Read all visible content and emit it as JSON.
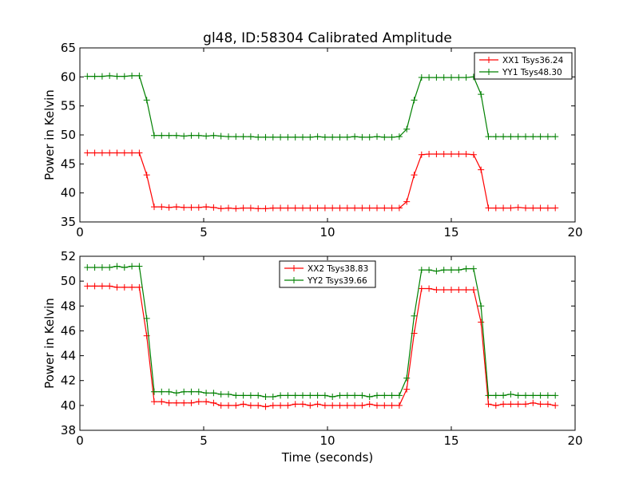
{
  "figure": {
    "title": "gl48, ID:58304 Calibrated Amplitude"
  },
  "chart_data": [
    {
      "type": "line",
      "title": "gl48, ID:58304 Calibrated Amplitude",
      "xlabel": "",
      "ylabel": "Power in Kelvin",
      "xlim": [
        0,
        20
      ],
      "ylim": [
        35,
        65
      ],
      "xticks": [
        0,
        5,
        10,
        15,
        20
      ],
      "yticks": [
        35,
        40,
        45,
        50,
        55,
        60,
        65
      ],
      "grid": false,
      "legend_position": "top-right",
      "marker": "+",
      "x": [
        0.3,
        0.6,
        0.9,
        1.2,
        1.5,
        1.8,
        2.1,
        2.4,
        2.7,
        3.0,
        3.3,
        3.6,
        3.9,
        4.2,
        4.5,
        4.8,
        5.1,
        5.4,
        5.7,
        6.0,
        6.3,
        6.6,
        6.9,
        7.2,
        7.5,
        7.8,
        8.1,
        8.4,
        8.7,
        9.0,
        9.3,
        9.6,
        9.9,
        10.2,
        10.5,
        10.8,
        11.1,
        11.4,
        11.7,
        12.0,
        12.3,
        12.6,
        12.9,
        13.2,
        13.5,
        13.8,
        14.1,
        14.4,
        14.7,
        15.0,
        15.3,
        15.6,
        15.9,
        16.2,
        16.5,
        16.8,
        17.1,
        17.4,
        17.7,
        18.0,
        18.3,
        18.6,
        18.9,
        19.2
      ],
      "series": [
        {
          "name": "XX1 Tsys36.24",
          "color": "#ff0000",
          "values": [
            46.9,
            46.9,
            46.9,
            46.9,
            46.9,
            46.9,
            46.9,
            46.9,
            43.1,
            37.6,
            37.6,
            37.5,
            37.6,
            37.5,
            37.5,
            37.5,
            37.6,
            37.5,
            37.3,
            37.4,
            37.3,
            37.4,
            37.4,
            37.3,
            37.3,
            37.4,
            37.4,
            37.4,
            37.4,
            37.4,
            37.4,
            37.4,
            37.4,
            37.4,
            37.4,
            37.4,
            37.4,
            37.4,
            37.4,
            37.4,
            37.4,
            37.4,
            37.4,
            38.5,
            43.1,
            46.6,
            46.7,
            46.7,
            46.7,
            46.7,
            46.7,
            46.7,
            46.6,
            44.0,
            37.4,
            37.4,
            37.4,
            37.4,
            37.5,
            37.4,
            37.4,
            37.4,
            37.4,
            37.4
          ]
        },
        {
          "name": "YY1 Tsys48.30",
          "color": "#008000",
          "values": [
            60.1,
            60.1,
            60.1,
            60.2,
            60.1,
            60.1,
            60.2,
            60.2,
            56.0,
            49.9,
            49.9,
            49.9,
            49.9,
            49.8,
            49.9,
            49.9,
            49.8,
            49.9,
            49.8,
            49.7,
            49.7,
            49.7,
            49.7,
            49.6,
            49.6,
            49.6,
            49.6,
            49.6,
            49.6,
            49.6,
            49.6,
            49.7,
            49.6,
            49.6,
            49.6,
            49.6,
            49.7,
            49.6,
            49.6,
            49.7,
            49.6,
            49.6,
            49.7,
            51.0,
            56.0,
            59.9,
            59.9,
            59.9,
            59.9,
            59.9,
            59.9,
            59.9,
            60.0,
            57.0,
            49.7,
            49.7,
            49.7,
            49.7,
            49.7,
            49.7,
            49.7,
            49.7,
            49.7,
            49.7
          ]
        }
      ]
    },
    {
      "type": "line",
      "title": "",
      "xlabel": "Time (seconds)",
      "ylabel": "Power in Kelvin",
      "xlim": [
        0,
        20
      ],
      "ylim": [
        38,
        52
      ],
      "xticks": [
        0,
        5,
        10,
        15,
        20
      ],
      "yticks": [
        38,
        40,
        42,
        44,
        46,
        48,
        50,
        52
      ],
      "grid": false,
      "legend_position": "top-center",
      "marker": "+",
      "x": [
        0.3,
        0.6,
        0.9,
        1.2,
        1.5,
        1.8,
        2.1,
        2.4,
        2.7,
        3.0,
        3.3,
        3.6,
        3.9,
        4.2,
        4.5,
        4.8,
        5.1,
        5.4,
        5.7,
        6.0,
        6.3,
        6.6,
        6.9,
        7.2,
        7.5,
        7.8,
        8.1,
        8.4,
        8.7,
        9.0,
        9.3,
        9.6,
        9.9,
        10.2,
        10.5,
        10.8,
        11.1,
        11.4,
        11.7,
        12.0,
        12.3,
        12.6,
        12.9,
        13.2,
        13.5,
        13.8,
        14.1,
        14.4,
        14.7,
        15.0,
        15.3,
        15.6,
        15.9,
        16.2,
        16.5,
        16.8,
        17.1,
        17.4,
        17.7,
        18.0,
        18.3,
        18.6,
        18.9,
        19.2
      ],
      "series": [
        {
          "name": "XX2 Tsys38.83",
          "color": "#ff0000",
          "values": [
            49.6,
            49.6,
            49.6,
            49.6,
            49.5,
            49.5,
            49.5,
            49.5,
            45.6,
            40.3,
            40.3,
            40.2,
            40.2,
            40.2,
            40.2,
            40.3,
            40.3,
            40.2,
            40.0,
            40.0,
            40.0,
            40.1,
            40.0,
            40.0,
            39.9,
            40.0,
            40.0,
            40.0,
            40.1,
            40.1,
            40.0,
            40.1,
            40.0,
            40.0,
            40.0,
            40.0,
            40.0,
            40.0,
            40.1,
            40.0,
            40.0,
            40.0,
            40.0,
            41.3,
            45.8,
            49.4,
            49.4,
            49.3,
            49.3,
            49.3,
            49.3,
            49.3,
            49.3,
            46.7,
            40.1,
            40.0,
            40.1,
            40.1,
            40.1,
            40.1,
            40.2,
            40.1,
            40.1,
            40.0
          ]
        },
        {
          "name": "YY2 Tsys39.66",
          "color": "#008000",
          "values": [
            51.1,
            51.1,
            51.1,
            51.1,
            51.2,
            51.1,
            51.2,
            51.2,
            47.0,
            41.1,
            41.1,
            41.1,
            41.0,
            41.1,
            41.1,
            41.1,
            41.0,
            41.0,
            40.9,
            40.9,
            40.8,
            40.8,
            40.8,
            40.8,
            40.7,
            40.7,
            40.8,
            40.8,
            40.8,
            40.8,
            40.8,
            40.8,
            40.8,
            40.7,
            40.8,
            40.8,
            40.8,
            40.8,
            40.7,
            40.8,
            40.8,
            40.8,
            40.8,
            42.2,
            47.2,
            50.9,
            50.9,
            50.8,
            50.9,
            50.9,
            50.9,
            51.0,
            51.0,
            48.0,
            40.8,
            40.8,
            40.8,
            40.9,
            40.8,
            40.8,
            40.8,
            40.8,
            40.8,
            40.8
          ]
        }
      ]
    }
  ]
}
